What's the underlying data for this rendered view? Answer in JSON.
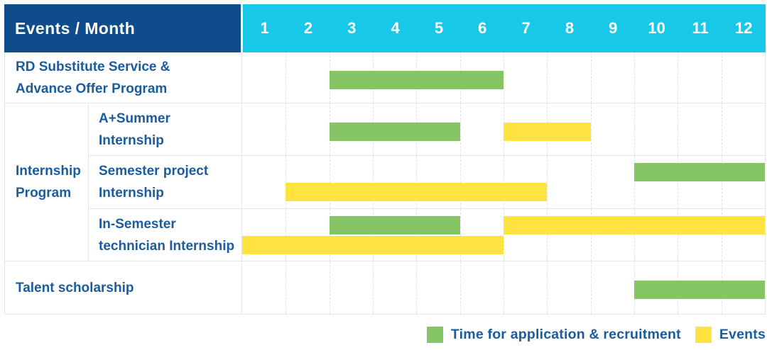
{
  "header": {
    "title": "Events / Month",
    "months": [
      "1",
      "2",
      "3",
      "4",
      "5",
      "6",
      "7",
      "8",
      "9",
      "10",
      "11",
      "12"
    ]
  },
  "legend": [
    {
      "kind": "application",
      "label": "Time for application & recruitment"
    },
    {
      "kind": "event",
      "label": "Events"
    }
  ],
  "colors": {
    "header_navy": "#0E4C8B",
    "header_cyan": "#18C8E8",
    "application_green": "#86C565",
    "event_yellow": "#FFE341",
    "label_text_blue": "#1B5C9E"
  },
  "chart_data": {
    "type": "gantt",
    "title": "Events / Month",
    "x_unit": "month",
    "x_range": [
      1,
      12
    ],
    "grid": true,
    "legend_position": "bottom-right",
    "legend": [
      {
        "kind": "application",
        "label": "Time for application & recruitment",
        "color": "#86C565"
      },
      {
        "kind": "event",
        "label": "Events",
        "color": "#FFE341"
      }
    ],
    "rows": [
      {
        "id": "rd-substitute",
        "group": "",
        "label": "RD Substitute Service & Advance Offer Program",
        "label_lines": [
          "RD Substitute Service &",
          "Advance Offer Program"
        ],
        "bars": [
          {
            "kind": "application",
            "start_month": 3,
            "end_month": 6,
            "line": "center"
          }
        ]
      },
      {
        "id": "a-plus-summer-internship",
        "group": "Internship Program",
        "label": "A+Summer Internship",
        "label_lines": [
          "A+Summer",
          "Internship"
        ],
        "bars": [
          {
            "kind": "application",
            "start_month": 3,
            "end_month": 5,
            "line": "center"
          },
          {
            "kind": "event",
            "start_month": 7,
            "end_month": 8,
            "line": "center"
          }
        ]
      },
      {
        "id": "semester-project-internship",
        "group": "Internship Program",
        "label": "Semester project Internship",
        "label_lines": [
          "Semester project",
          "Internship"
        ],
        "bars": [
          {
            "kind": "application",
            "start_month": 10,
            "end_month": 12,
            "line": "top"
          },
          {
            "kind": "event",
            "start_month": 2,
            "end_month": 7,
            "line": "bottom"
          }
        ]
      },
      {
        "id": "in-semester-technician-internship",
        "group": "Internship Program",
        "label": "In-Semester technician Internship",
        "label_lines": [
          "In-Semester",
          "technician Internship"
        ],
        "bars": [
          {
            "kind": "application",
            "start_month": 3,
            "end_month": 5,
            "line": "top"
          },
          {
            "kind": "event",
            "start_month": 7,
            "end_month": 12,
            "line": "top"
          },
          {
            "kind": "event",
            "start_month": 1,
            "end_month": 6,
            "line": "bottom"
          }
        ]
      },
      {
        "id": "talent-scholarship",
        "group": "",
        "label": "Talent scholarship",
        "label_lines": [
          "Talent scholarship"
        ],
        "bars": [
          {
            "kind": "application",
            "start_month": 10,
            "end_month": 12,
            "line": "center"
          }
        ]
      }
    ],
    "group_label_lines": [
      "Internship",
      "Program"
    ]
  }
}
